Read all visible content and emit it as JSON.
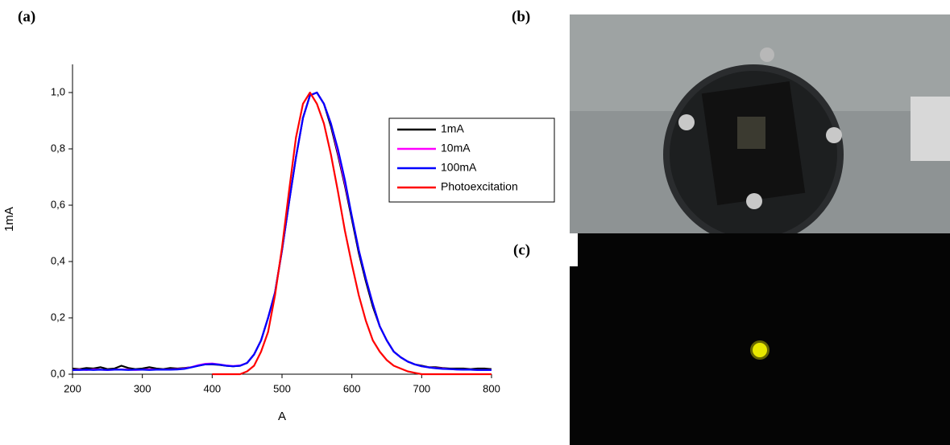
{
  "panel_labels": [
    "(a)",
    "(b)",
    "(c)"
  ],
  "chart_data": {
    "type": "line",
    "x_label": "A",
    "y_label": "1mA",
    "xlim": [
      200,
      800
    ],
    "xticks": [
      200,
      300,
      400,
      500,
      600,
      700,
      800
    ],
    "ylim": [
      0,
      1.1
    ],
    "yticks": [
      {
        "value": 0,
        "label": "0,0"
      },
      {
        "value": 0.2,
        "label": "0,2"
      },
      {
        "value": 0.4,
        "label": "0,4"
      },
      {
        "value": 0.6,
        "label": "0,6"
      },
      {
        "value": 0.8,
        "label": "0,8"
      },
      {
        "value": 1.0,
        "label": "1,0"
      }
    ],
    "legend": "upper right",
    "x": [
      200,
      210,
      220,
      230,
      240,
      250,
      260,
      270,
      280,
      290,
      300,
      310,
      320,
      330,
      340,
      350,
      360,
      370,
      380,
      390,
      400,
      410,
      420,
      430,
      440,
      450,
      460,
      470,
      480,
      490,
      500,
      510,
      520,
      530,
      540,
      550,
      560,
      570,
      580,
      590,
      600,
      610,
      620,
      630,
      640,
      650,
      660,
      670,
      680,
      690,
      700,
      710,
      720,
      730,
      740,
      750,
      760,
      770,
      780,
      790,
      800
    ],
    "series": [
      {
        "name": "1mA",
        "color": "#000000",
        "values": [
          0.02,
          0.018,
          0.022,
          0.02,
          0.025,
          0.018,
          0.02,
          0.03,
          0.022,
          0.018,
          0.02,
          0.025,
          0.02,
          0.018,
          0.022,
          0.02,
          0.022,
          0.025,
          0.03,
          0.035,
          0.035,
          0.033,
          0.03,
          0.028,
          0.03,
          0.04,
          0.07,
          0.12,
          0.2,
          0.29,
          0.44,
          0.61,
          0.77,
          0.91,
          0.99,
          1.0,
          0.96,
          0.88,
          0.78,
          0.67,
          0.55,
          0.43,
          0.33,
          0.24,
          0.17,
          0.12,
          0.08,
          0.06,
          0.045,
          0.035,
          0.03,
          0.025,
          0.025,
          0.022,
          0.02,
          0.02,
          0.02,
          0.018,
          0.02,
          0.02,
          0.018
        ]
      },
      {
        "name": "10mA",
        "color": "#ff00ff",
        "values": [
          0.015,
          0.016,
          0.015,
          0.017,
          0.016,
          0.015,
          0.016,
          0.017,
          0.016,
          0.015,
          0.016,
          0.017,
          0.016,
          0.016,
          0.017,
          0.018,
          0.02,
          0.025,
          0.032,
          0.037,
          0.038,
          0.035,
          0.031,
          0.029,
          0.031,
          0.04,
          0.07,
          0.12,
          0.2,
          0.29,
          0.44,
          0.61,
          0.77,
          0.91,
          0.99,
          1.0,
          0.96,
          0.89,
          0.79,
          0.68,
          0.56,
          0.44,
          0.34,
          0.25,
          0.17,
          0.12,
          0.08,
          0.06,
          0.045,
          0.035,
          0.028,
          0.024,
          0.022,
          0.02,
          0.018,
          0.017,
          0.016,
          0.016,
          0.015,
          0.015,
          0.015
        ]
      },
      {
        "name": "100mA",
        "color": "#0000ff",
        "values": [
          0.015,
          0.015,
          0.016,
          0.015,
          0.016,
          0.015,
          0.016,
          0.016,
          0.015,
          0.016,
          0.016,
          0.015,
          0.016,
          0.016,
          0.016,
          0.017,
          0.019,
          0.024,
          0.03,
          0.035,
          0.036,
          0.034,
          0.03,
          0.028,
          0.03,
          0.04,
          0.07,
          0.12,
          0.2,
          0.29,
          0.44,
          0.61,
          0.77,
          0.91,
          0.99,
          1.0,
          0.96,
          0.89,
          0.8,
          0.69,
          0.56,
          0.44,
          0.34,
          0.25,
          0.17,
          0.12,
          0.08,
          0.06,
          0.045,
          0.035,
          0.028,
          0.024,
          0.021,
          0.019,
          0.018,
          0.017,
          0.016,
          0.016,
          0.015,
          0.015,
          0.015
        ]
      },
      {
        "name": "Photoexcitation",
        "color": "#ff0000",
        "values": [
          null,
          null,
          null,
          null,
          null,
          null,
          null,
          null,
          null,
          null,
          null,
          null,
          null,
          null,
          null,
          null,
          null,
          null,
          null,
          null,
          0,
          0,
          0,
          0,
          0,
          0.01,
          0.03,
          0.08,
          0.15,
          0.28,
          0.45,
          0.65,
          0.84,
          0.96,
          1.0,
          0.96,
          0.89,
          0.78,
          0.65,
          0.51,
          0.39,
          0.28,
          0.19,
          0.12,
          0.08,
          0.05,
          0.03,
          0.02,
          0.01,
          0.005,
          0,
          0,
          0,
          0,
          0,
          0,
          0,
          0,
          0,
          0,
          0
        ]
      }
    ]
  }
}
